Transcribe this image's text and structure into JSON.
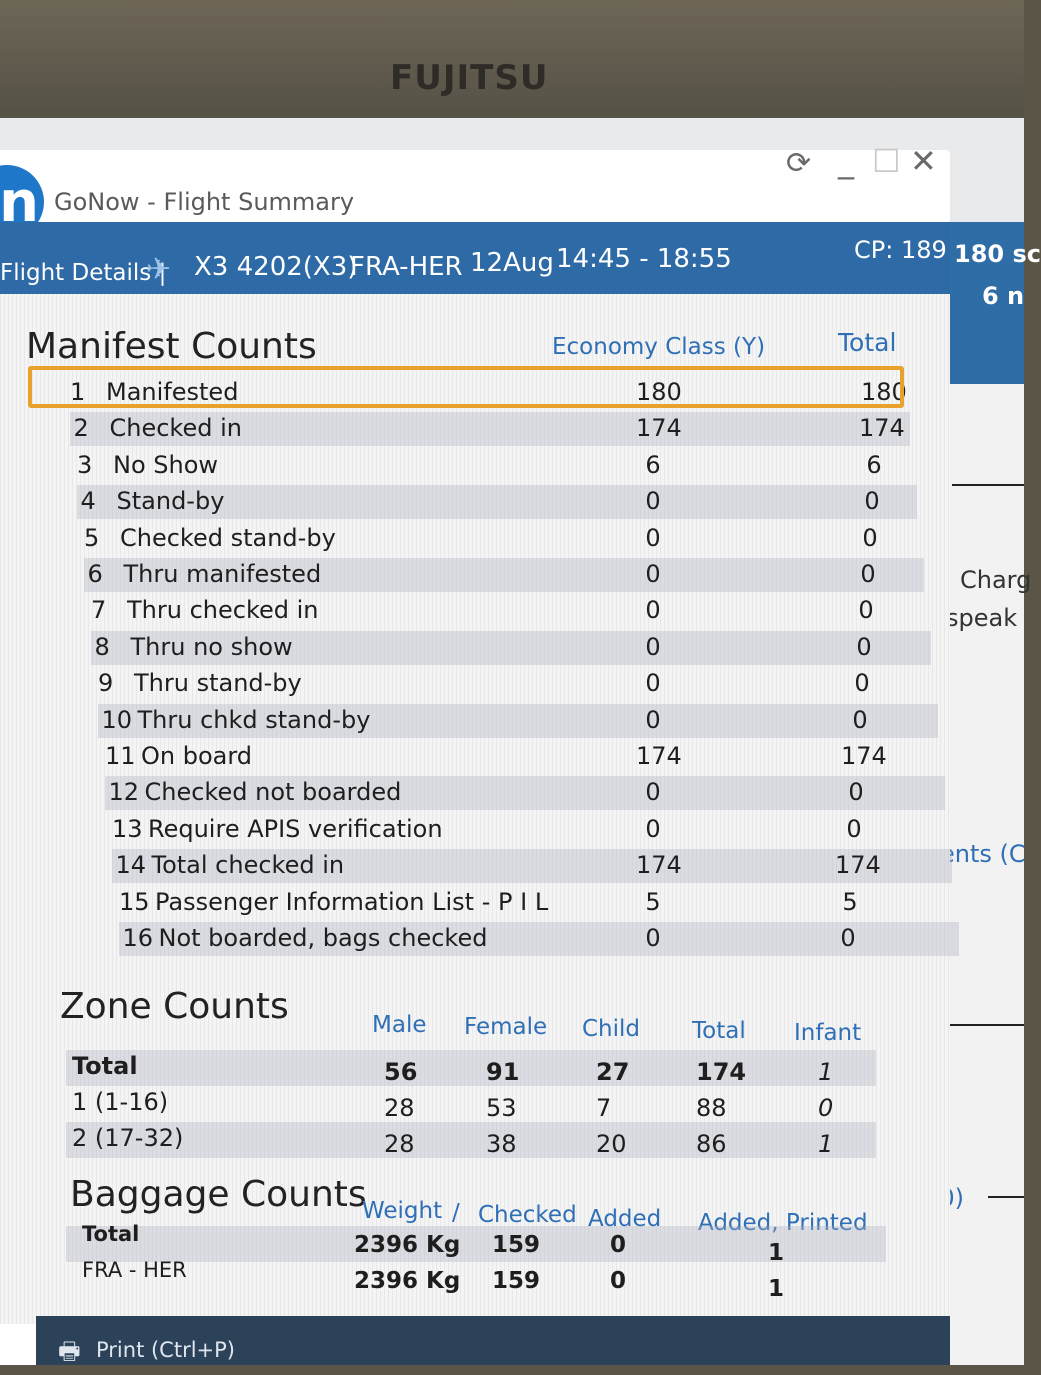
{
  "monitor": {
    "brand": "FUJITSU"
  },
  "window": {
    "title": "GoNow - Flight Summary",
    "logo_char": "n",
    "controls": {
      "refresh": "⟳",
      "minimize": "_",
      "maximize": "☐",
      "close": "✕"
    }
  },
  "header": {
    "label": "Flight Details |",
    "flight": "X3 4202(X3)",
    "route": "FRA-HER",
    "date": "12Aug",
    "time": "14:45 - 18:55",
    "cp": "CP: 189"
  },
  "background_app": {
    "texts": [
      "180 sc",
      "6 n",
      "Charg",
      "speak",
      "ents (C",
      "(0)"
    ]
  },
  "manifest": {
    "title": "Manifest Counts",
    "col_economy": "Economy Class (Y)",
    "col_total": "Total",
    "rows": [
      {
        "n": "1",
        "label": "Manifested",
        "economy": "180",
        "total": "180"
      },
      {
        "n": "2",
        "label": "Checked in",
        "economy": "174",
        "total": "174"
      },
      {
        "n": "3",
        "label": "No Show",
        "economy": "6",
        "total": "6"
      },
      {
        "n": "4",
        "label": "Stand-by",
        "economy": "0",
        "total": "0"
      },
      {
        "n": "5",
        "label": "Checked stand-by",
        "economy": "0",
        "total": "0"
      },
      {
        "n": "6",
        "label": "Thru manifested",
        "economy": "0",
        "total": "0"
      },
      {
        "n": "7",
        "label": "Thru checked in",
        "economy": "0",
        "total": "0"
      },
      {
        "n": "8",
        "label": "Thru no show",
        "economy": "0",
        "total": "0"
      },
      {
        "n": "9",
        "label": "Thru stand-by",
        "economy": "0",
        "total": "0"
      },
      {
        "n": "10",
        "label": "Thru chkd stand-by",
        "economy": "0",
        "total": "0"
      },
      {
        "n": "11",
        "label": "On board",
        "economy": "174",
        "total": "174"
      },
      {
        "n": "12",
        "label": "Checked not boarded",
        "economy": "0",
        "total": "0"
      },
      {
        "n": "13",
        "label": "Require APIS verification",
        "economy": "0",
        "total": "0"
      },
      {
        "n": "14",
        "label": "Total checked in",
        "economy": "174",
        "total": "174"
      },
      {
        "n": "15",
        "label": "Passenger Information List - P I L",
        "economy": "5",
        "total": "5"
      },
      {
        "n": "16",
        "label": "Not boarded, bags checked",
        "economy": "0",
        "total": "0"
      }
    ]
  },
  "zone": {
    "title": "Zone Counts",
    "headers": [
      "Male",
      "Female",
      "Child",
      "Total",
      "Infant"
    ],
    "rows": [
      {
        "label": "Total",
        "male": "56",
        "female": "91",
        "child": "27",
        "total": "174",
        "infant": "1"
      },
      {
        "label": "1 (1-16)",
        "male": "28",
        "female": "53",
        "child": "7",
        "total": "88",
        "infant": "0"
      },
      {
        "label": "2 (17-32)",
        "male": "28",
        "female": "38",
        "child": "20",
        "total": "86",
        "infant": "1"
      }
    ]
  },
  "baggage": {
    "title": "Baggage Counts",
    "headers": [
      "Weight",
      "/",
      "Checked",
      "Added",
      "Added, Printed"
    ],
    "rows": [
      {
        "label": "Total",
        "weight": "2396 Kg",
        "checked": "159",
        "added": "0",
        "printed": "1"
      },
      {
        "label": "FRA - HER",
        "weight": "2396 Kg",
        "checked": "159",
        "added": "0",
        "printed": "1"
      }
    ]
  },
  "footer": {
    "print": "Print (Ctrl+P)"
  }
}
